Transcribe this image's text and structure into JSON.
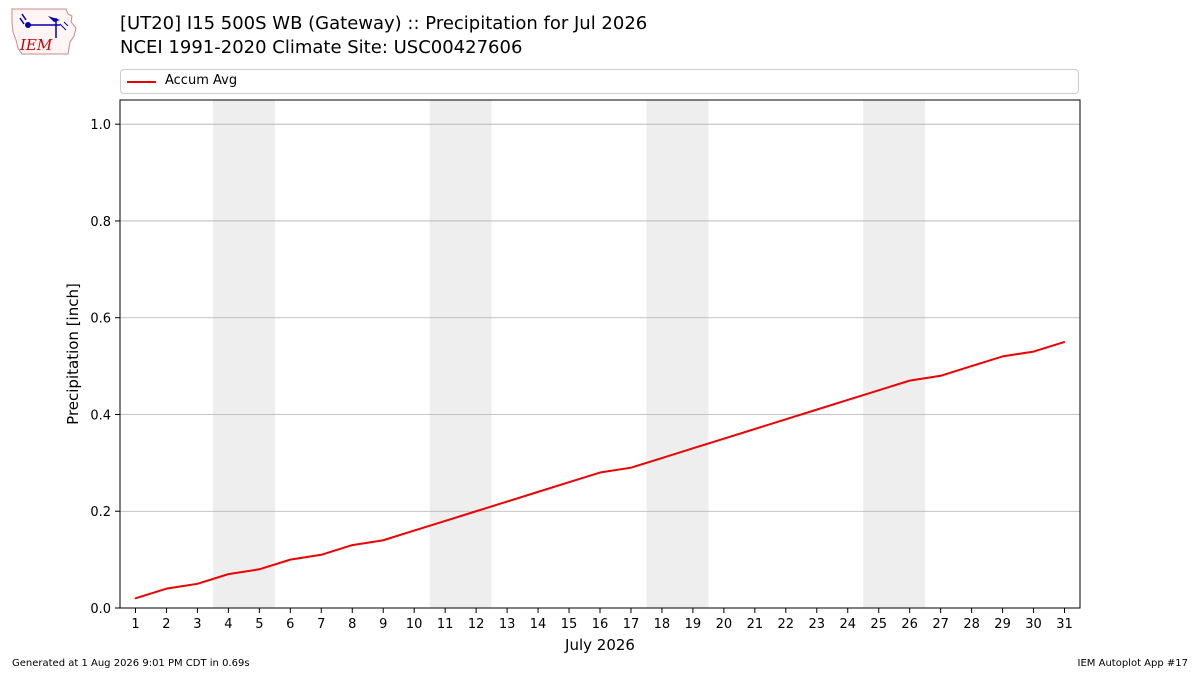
{
  "header": {
    "title_line1": "[UT20] I15 500S WB (Gateway)  :: Precipitation for Jul 2026",
    "title_line2": "NCEI 1991-2020 Climate Site: USC00427606"
  },
  "logo": {
    "text": "IEM"
  },
  "footer": {
    "left": "Generated at 1 Aug 2026 9:01 PM CDT in 0.69s",
    "right": "IEM Autoplot App #17"
  },
  "colors": {
    "series": "#ee0000",
    "weekend_band": "#eeeeee",
    "grid": "#b0b0b0",
    "logo": "#cc0000"
  },
  "chart_data": {
    "type": "line",
    "xlabel": "July 2026",
    "ylabel": "Precipitation [inch]",
    "xlim": [
      0.5,
      31.5
    ],
    "ylim": [
      0.0,
      1.05
    ],
    "x_ticks": [
      1,
      2,
      3,
      4,
      5,
      6,
      7,
      8,
      9,
      10,
      11,
      12,
      13,
      14,
      15,
      16,
      17,
      18,
      19,
      20,
      21,
      22,
      23,
      24,
      25,
      26,
      27,
      28,
      29,
      30,
      31
    ],
    "y_ticks": [
      0.0,
      0.2,
      0.4,
      0.6,
      0.8,
      1.0
    ],
    "y_tick_labels": [
      "0.0",
      "0.2",
      "0.4",
      "0.6",
      "0.8",
      "1.0"
    ],
    "grid": "horizontal",
    "legend_position": "top",
    "shaded_weekends": [
      [
        3.5,
        5.5
      ],
      [
        10.5,
        12.5
      ],
      [
        17.5,
        19.5
      ],
      [
        24.5,
        26.5
      ]
    ],
    "series": [
      {
        "name": "Accum Avg",
        "color": "#ee0000",
        "x": [
          1,
          2,
          3,
          4,
          5,
          6,
          7,
          8,
          9,
          10,
          11,
          12,
          13,
          14,
          15,
          16,
          17,
          18,
          19,
          20,
          21,
          22,
          23,
          24,
          25,
          26,
          27,
          28,
          29,
          30,
          31
        ],
        "values": [
          0.02,
          0.04,
          0.05,
          0.07,
          0.08,
          0.1,
          0.11,
          0.13,
          0.14,
          0.16,
          0.18,
          0.2,
          0.22,
          0.24,
          0.26,
          0.28,
          0.29,
          0.31,
          0.33,
          0.35,
          0.37,
          0.39,
          0.41,
          0.43,
          0.45,
          0.47,
          0.48,
          0.5,
          0.52,
          0.53,
          0.55
        ]
      }
    ]
  }
}
